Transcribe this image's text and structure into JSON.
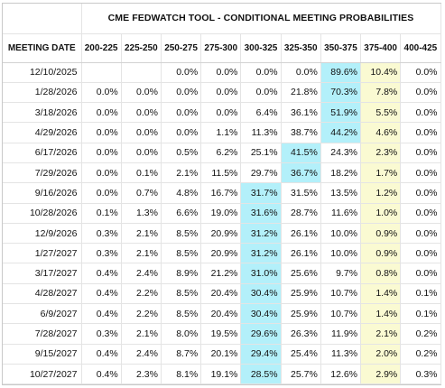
{
  "chart_data": {
    "type": "table",
    "title": "CME FEDWATCH TOOL - CONDITIONAL MEETING PROBABILITIES",
    "header_first": "MEETING DATE",
    "columns": [
      "200-225",
      "225-250",
      "250-275",
      "275-300",
      "300-325",
      "325-350",
      "350-375",
      "375-400",
      "400-425"
    ],
    "rows": [
      {
        "date": "12/10/2025",
        "values": [
          "",
          "",
          "0.0%",
          "0.0%",
          "0.0%",
          "0.0%",
          "89.6%",
          "10.4%",
          "0.0%"
        ],
        "max_col": 6
      },
      {
        "date": "1/28/2026",
        "values": [
          "0.0%",
          "0.0%",
          "0.0%",
          "0.0%",
          "0.0%",
          "21.8%",
          "70.3%",
          "7.8%",
          "0.0%"
        ],
        "max_col": 6
      },
      {
        "date": "3/18/2026",
        "values": [
          "0.0%",
          "0.0%",
          "0.0%",
          "0.0%",
          "6.4%",
          "36.1%",
          "51.9%",
          "5.5%",
          "0.0%"
        ],
        "max_col": 6
      },
      {
        "date": "4/29/2026",
        "values": [
          "0.0%",
          "0.0%",
          "0.0%",
          "1.1%",
          "11.3%",
          "38.7%",
          "44.2%",
          "4.6%",
          "0.0%"
        ],
        "max_col": 6
      },
      {
        "date": "6/17/2026",
        "values": [
          "0.0%",
          "0.0%",
          "0.5%",
          "6.2%",
          "25.1%",
          "41.5%",
          "24.3%",
          "2.3%",
          "0.0%"
        ],
        "max_col": 5
      },
      {
        "date": "7/29/2026",
        "values": [
          "0.0%",
          "0.1%",
          "2.1%",
          "11.5%",
          "29.7%",
          "36.7%",
          "18.2%",
          "1.7%",
          "0.0%"
        ],
        "max_col": 5
      },
      {
        "date": "9/16/2026",
        "values": [
          "0.0%",
          "0.7%",
          "4.8%",
          "16.7%",
          "31.7%",
          "31.5%",
          "13.5%",
          "1.2%",
          "0.0%"
        ],
        "max_col": 4
      },
      {
        "date": "10/28/2026",
        "values": [
          "0.1%",
          "1.3%",
          "6.6%",
          "19.0%",
          "31.6%",
          "28.7%",
          "11.6%",
          "1.0%",
          "0.0%"
        ],
        "max_col": 4
      },
      {
        "date": "12/9/2026",
        "values": [
          "0.3%",
          "2.1%",
          "8.5%",
          "20.9%",
          "31.2%",
          "26.1%",
          "10.0%",
          "0.9%",
          "0.0%"
        ],
        "max_col": 4
      },
      {
        "date": "1/27/2027",
        "values": [
          "0.3%",
          "2.1%",
          "8.5%",
          "20.9%",
          "31.2%",
          "26.1%",
          "10.0%",
          "0.9%",
          "0.0%"
        ],
        "max_col": 4
      },
      {
        "date": "3/17/2027",
        "values": [
          "0.4%",
          "2.4%",
          "8.9%",
          "21.2%",
          "31.0%",
          "25.6%",
          "9.7%",
          "0.8%",
          "0.0%"
        ],
        "max_col": 4
      },
      {
        "date": "4/28/2027",
        "values": [
          "0.4%",
          "2.2%",
          "8.5%",
          "20.4%",
          "30.4%",
          "25.9%",
          "10.7%",
          "1.4%",
          "0.1%"
        ],
        "max_col": 4
      },
      {
        "date": "6/9/2027",
        "values": [
          "0.4%",
          "2.2%",
          "8.5%",
          "20.4%",
          "30.4%",
          "25.9%",
          "10.7%",
          "1.4%",
          "0.1%"
        ],
        "max_col": 4
      },
      {
        "date": "7/28/2027",
        "values": [
          "0.3%",
          "2.1%",
          "8.0%",
          "19.5%",
          "29.6%",
          "26.3%",
          "11.9%",
          "2.1%",
          "0.2%"
        ],
        "max_col": 4
      },
      {
        "date": "9/15/2027",
        "values": [
          "0.4%",
          "2.4%",
          "8.7%",
          "20.1%",
          "29.4%",
          "25.4%",
          "11.3%",
          "2.0%",
          "0.2%"
        ],
        "max_col": 4
      },
      {
        "date": "10/27/2027",
        "values": [
          "0.4%",
          "2.3%",
          "8.1%",
          "19.1%",
          "28.5%",
          "25.7%",
          "12.6%",
          "2.9%",
          "0.3%"
        ],
        "max_col": 4
      }
    ],
    "current_col": 7,
    "colors": {
      "max_highlight": "#b3f0fa",
      "current_range_highlight": "#fafad2",
      "border": "#c9c9c9",
      "gridline": "#e4e4e4"
    }
  }
}
